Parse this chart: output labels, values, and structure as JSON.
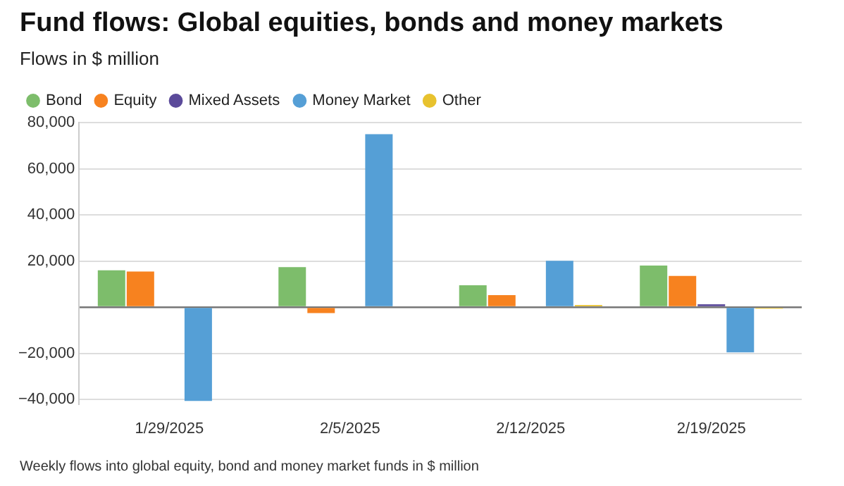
{
  "chart_data": {
    "type": "bar",
    "title": "Fund flows: Global equities, bonds and money markets",
    "subtitle": "Flows in $ million",
    "categories": [
      "1/29/2025",
      "2/5/2025",
      "2/12/2025",
      "2/19/2025"
    ],
    "series": [
      {
        "name": "Bond",
        "color": "#7dbd6b",
        "values": [
          16000,
          17300,
          9500,
          18000
        ]
      },
      {
        "name": "Equity",
        "color": "#f7821f",
        "values": [
          15400,
          -2600,
          5200,
          13500
        ]
      },
      {
        "name": "Mixed Assets",
        "color": "#5b4a9a",
        "values": [
          0,
          0,
          null,
          1200
        ]
      },
      {
        "name": "Money Market",
        "color": "#559fd6",
        "values": [
          -40700,
          75000,
          20100,
          -19600
        ]
      },
      {
        "name": "Other",
        "color": "#e8c22e",
        "values": [
          null,
          0,
          900,
          -700
        ]
      }
    ],
    "ylim": [
      -42000,
      80000
    ],
    "yticks": [
      {
        "value": -40000,
        "label": "−40,000"
      },
      {
        "value": -20000,
        "label": "−20,000"
      },
      {
        "value": 0,
        "label": null
      },
      {
        "value": 20000,
        "label": "20,000"
      },
      {
        "value": 40000,
        "label": "40,000"
      },
      {
        "value": 60000,
        "label": "60,000"
      },
      {
        "value": 80000,
        "label": "80,000"
      }
    ],
    "grid": "y",
    "legend": "top left",
    "annotations": [
      "Weekly flows into global equity, bond and money market funds in $ million"
    ]
  }
}
